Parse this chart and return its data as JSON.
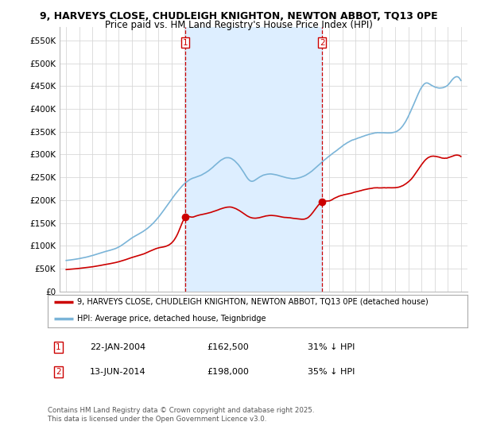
{
  "title_line1": "9, HARVEYS CLOSE, CHUDLEIGH KNIGHTON, NEWTON ABBOT, TQ13 0PE",
  "title_line2": "Price paid vs. HM Land Registry's House Price Index (HPI)",
  "hpi_color": "#7ab4d8",
  "price_color": "#cc0000",
  "vline_color": "#cc0000",
  "shade_color": "#ddeeff",
  "background_color": "#ffffff",
  "grid_color": "#d8d8d8",
  "ylim": [
    0,
    580000
  ],
  "yticks": [
    0,
    50000,
    100000,
    150000,
    200000,
    250000,
    300000,
    350000,
    400000,
    450000,
    500000,
    550000
  ],
  "ytick_labels": [
    "£0",
    "£50K",
    "£100K",
    "£150K",
    "£200K",
    "£250K",
    "£300K",
    "£350K",
    "£400K",
    "£450K",
    "£500K",
    "£550K"
  ],
  "transaction1_date": "22-JAN-2004",
  "transaction1_price": 162500,
  "transaction1_hpi": "31% ↓ HPI",
  "transaction1_x": 2004.06,
  "transaction2_date": "13-JUN-2014",
  "transaction2_price": 198000,
  "transaction2_hpi": "35% ↓ HPI",
  "transaction2_x": 2014.45,
  "legend_line1": "9, HARVEYS CLOSE, CHUDLEIGH KNIGHTON, NEWTON ABBOT, TQ13 0PE (detached house)",
  "legend_line2": "HPI: Average price, detached house, Teignbridge",
  "footnote": "Contains HM Land Registry data © Crown copyright and database right 2025.\nThis data is licensed under the Open Government Licence v3.0.",
  "xlim": [
    1994.5,
    2025.5
  ],
  "xticks": [
    1995,
    1996,
    1997,
    1998,
    1999,
    2000,
    2001,
    2002,
    2003,
    2004,
    2005,
    2006,
    2007,
    2008,
    2009,
    2010,
    2011,
    2012,
    2013,
    2014,
    2015,
    2016,
    2017,
    2018,
    2019,
    2020,
    2021,
    2022,
    2023,
    2024,
    2025
  ]
}
